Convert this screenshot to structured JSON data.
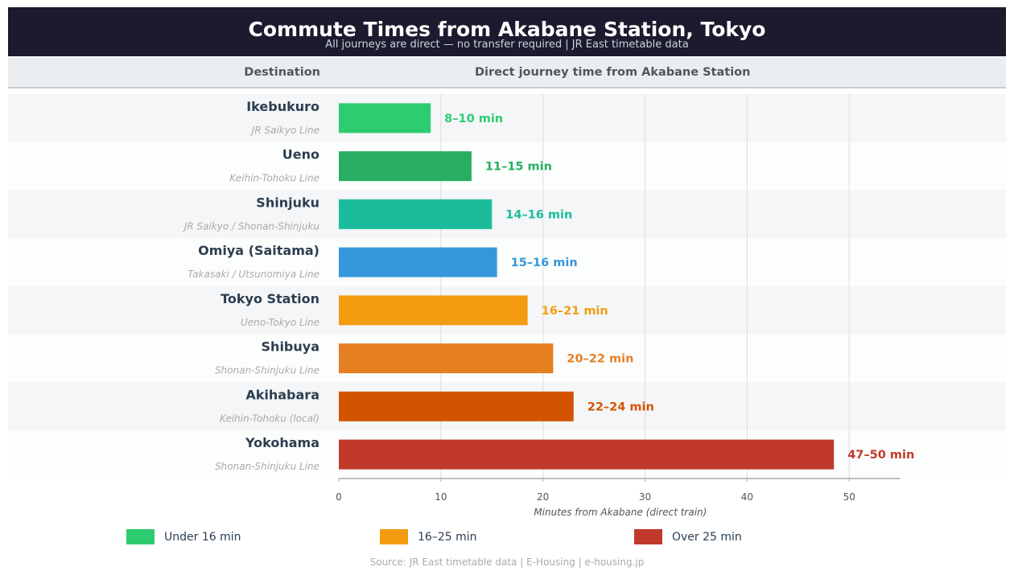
{
  "header": {
    "title": "Commute Times from Akabane Station, Tokyo",
    "subtitle": "All journeys are direct — no transfer required  |  JR East timetable data"
  },
  "columns": {
    "destination": "Destination",
    "journey": "Direct journey time from Akabane Station"
  },
  "chart_data": {
    "type": "bar",
    "orientation": "horizontal",
    "categories": [
      "Ikebukuro",
      "Ueno",
      "Shinjuku",
      "Omiya (Saitama)",
      "Tokyo Station",
      "Shibuya",
      "Akihabara",
      "Yokohama"
    ],
    "lines": [
      "JR Saikyo Line",
      "Keihin-Tohoku Line",
      "JR Saikyo / Shonan-Shinjuku",
      "Takasaki / Utsunomiya Line",
      "Ueno-Tokyo Line",
      "Shonan-Shinjuku Line",
      "Keihin-Tohoku (local)",
      "Shonan-Shinjuku Line"
    ],
    "values": [
      9,
      13,
      15,
      15.5,
      18.5,
      21,
      23,
      48.5
    ],
    "value_labels": [
      "8–10 min",
      "11–15 min",
      "14–16 min",
      "15–16 min",
      "16–21 min",
      "20–22 min",
      "22–24 min",
      "47–50 min"
    ],
    "colors": [
      "#2ecc71",
      "#27ae60",
      "#1abc9c",
      "#3498db",
      "#f39c12",
      "#e67e22",
      "#d35400",
      "#c0392b"
    ],
    "xlabel": "Minutes from Akabane (direct train)",
    "xlim": [
      0,
      55
    ],
    "xticks": [
      0,
      10,
      20,
      30,
      40,
      50
    ],
    "grid": "vertical",
    "legend_position": "bottom"
  },
  "legend": [
    {
      "label": "Under 16 min",
      "color": "#2ecc71"
    },
    {
      "label": "16–25 min",
      "color": "#f39c12"
    },
    {
      "label": "Over 25 min",
      "color": "#c0392b"
    }
  ],
  "source": "Source: JR East timetable data  |  E-Housing  |  e-housing.jp"
}
